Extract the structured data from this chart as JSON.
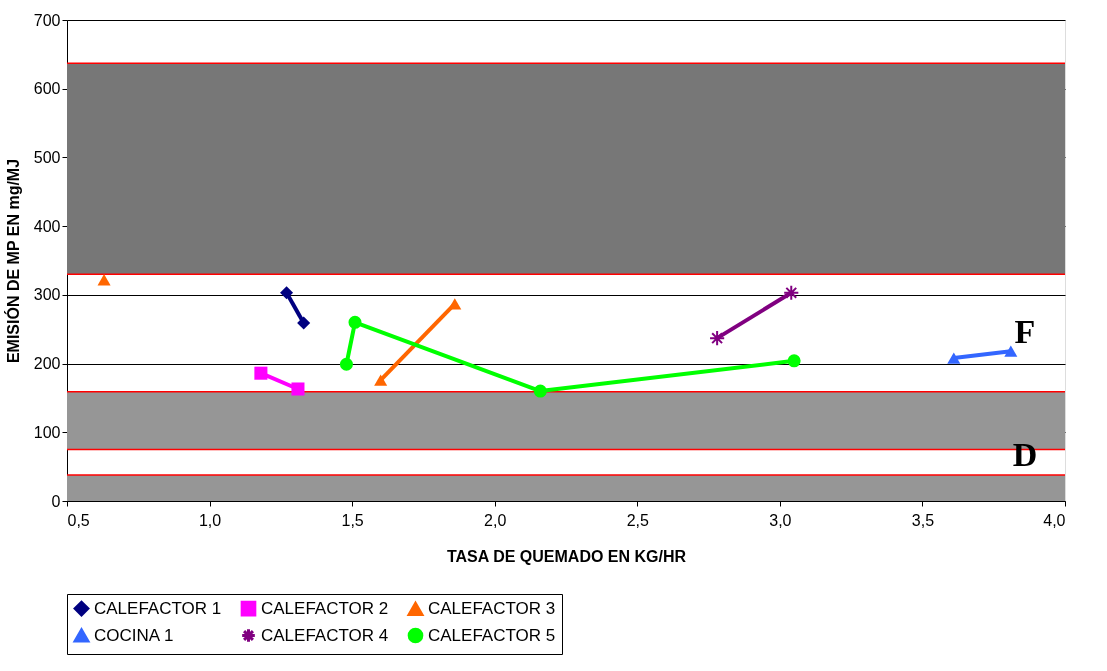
{
  "chart_data": {
    "type": "line",
    "xlabel": "TASA DE QUEMADO EN KG/HR",
    "ylabel": "EMISIÓN DE MP EN mg/MJ",
    "xlim": [
      0.5,
      4.0
    ],
    "xticks": [
      {
        "value": 0.5,
        "label": "0,5"
      },
      {
        "value": 1.0,
        "label": "1,0"
      },
      {
        "value": 1.5,
        "label": "1,5"
      },
      {
        "value": 2.0,
        "label": "2,0"
      },
      {
        "value": 2.5,
        "label": "2,5"
      },
      {
        "value": 3.0,
        "label": "3,0"
      },
      {
        "value": 3.5,
        "label": "3,5"
      },
      {
        "value": 4.0,
        "label": "4,0"
      }
    ],
    "ylim": [
      0,
      700
    ],
    "yticks": [
      0,
      100,
      200,
      300,
      400,
      500,
      600,
      700
    ],
    "grid": "y",
    "legend": "bottom",
    "line_style": "solid",
    "series": [
      {
        "name": "CALEFACTOR 1",
        "color": "#000080",
        "marker": "diamond",
        "x": [
          1.27,
          1.33
        ],
        "values": [
          303,
          259
        ]
      },
      {
        "name": "CALEFACTOR 2",
        "color": "#ff00ff",
        "marker": "square",
        "x": [
          1.18,
          1.31
        ],
        "values": [
          186,
          163
        ]
      },
      {
        "name": "CALEFACTOR 3",
        "color": "#ff6600",
        "marker": "triangle",
        "x": [
          0.63
        ],
        "values": [
          322
        ]
      },
      {
        "color": "#ff6600",
        "marker": "triangle",
        "x": [
          1.6,
          1.86
        ],
        "values": [
          176,
          287
        ]
      },
      {
        "name": "COCINA 1",
        "color": "#3366ff",
        "marker": "triangle",
        "x": [
          3.61,
          3.81
        ],
        "values": [
          208,
          218
        ]
      },
      {
        "name": "CALEFACTOR 4",
        "color": "#800080",
        "marker": "cross",
        "x": [
          2.78,
          3.04
        ],
        "values": [
          237,
          303
        ]
      },
      {
        "name": "CALEFACTOR 5",
        "color": "#00ff00",
        "marker": "circle",
        "x": [
          1.48,
          1.51,
          2.16,
          3.05
        ],
        "values": [
          199,
          260,
          160,
          204
        ]
      }
    ],
    "bands": [
      {
        "axis": "y",
        "from": 330,
        "to": 637,
        "color": "#777777"
      },
      {
        "axis": "y",
        "from": 75,
        "to": 159,
        "color": "#969696"
      },
      {
        "axis": "y",
        "from": 0,
        "to": 38,
        "color": "#969696"
      }
    ],
    "ref_lines": [
      {
        "axis": "y",
        "value": 637,
        "color": "#ff0000"
      },
      {
        "axis": "y",
        "value": 330,
        "color": "#ff0000"
      },
      {
        "axis": "y",
        "value": 159,
        "color": "#ff0000"
      },
      {
        "axis": "y",
        "value": 75,
        "color": "#ff0000"
      },
      {
        "axis": "y",
        "value": 38,
        "color": "#ff0000"
      }
    ],
    "annotations": [
      "F",
      "D"
    ]
  }
}
